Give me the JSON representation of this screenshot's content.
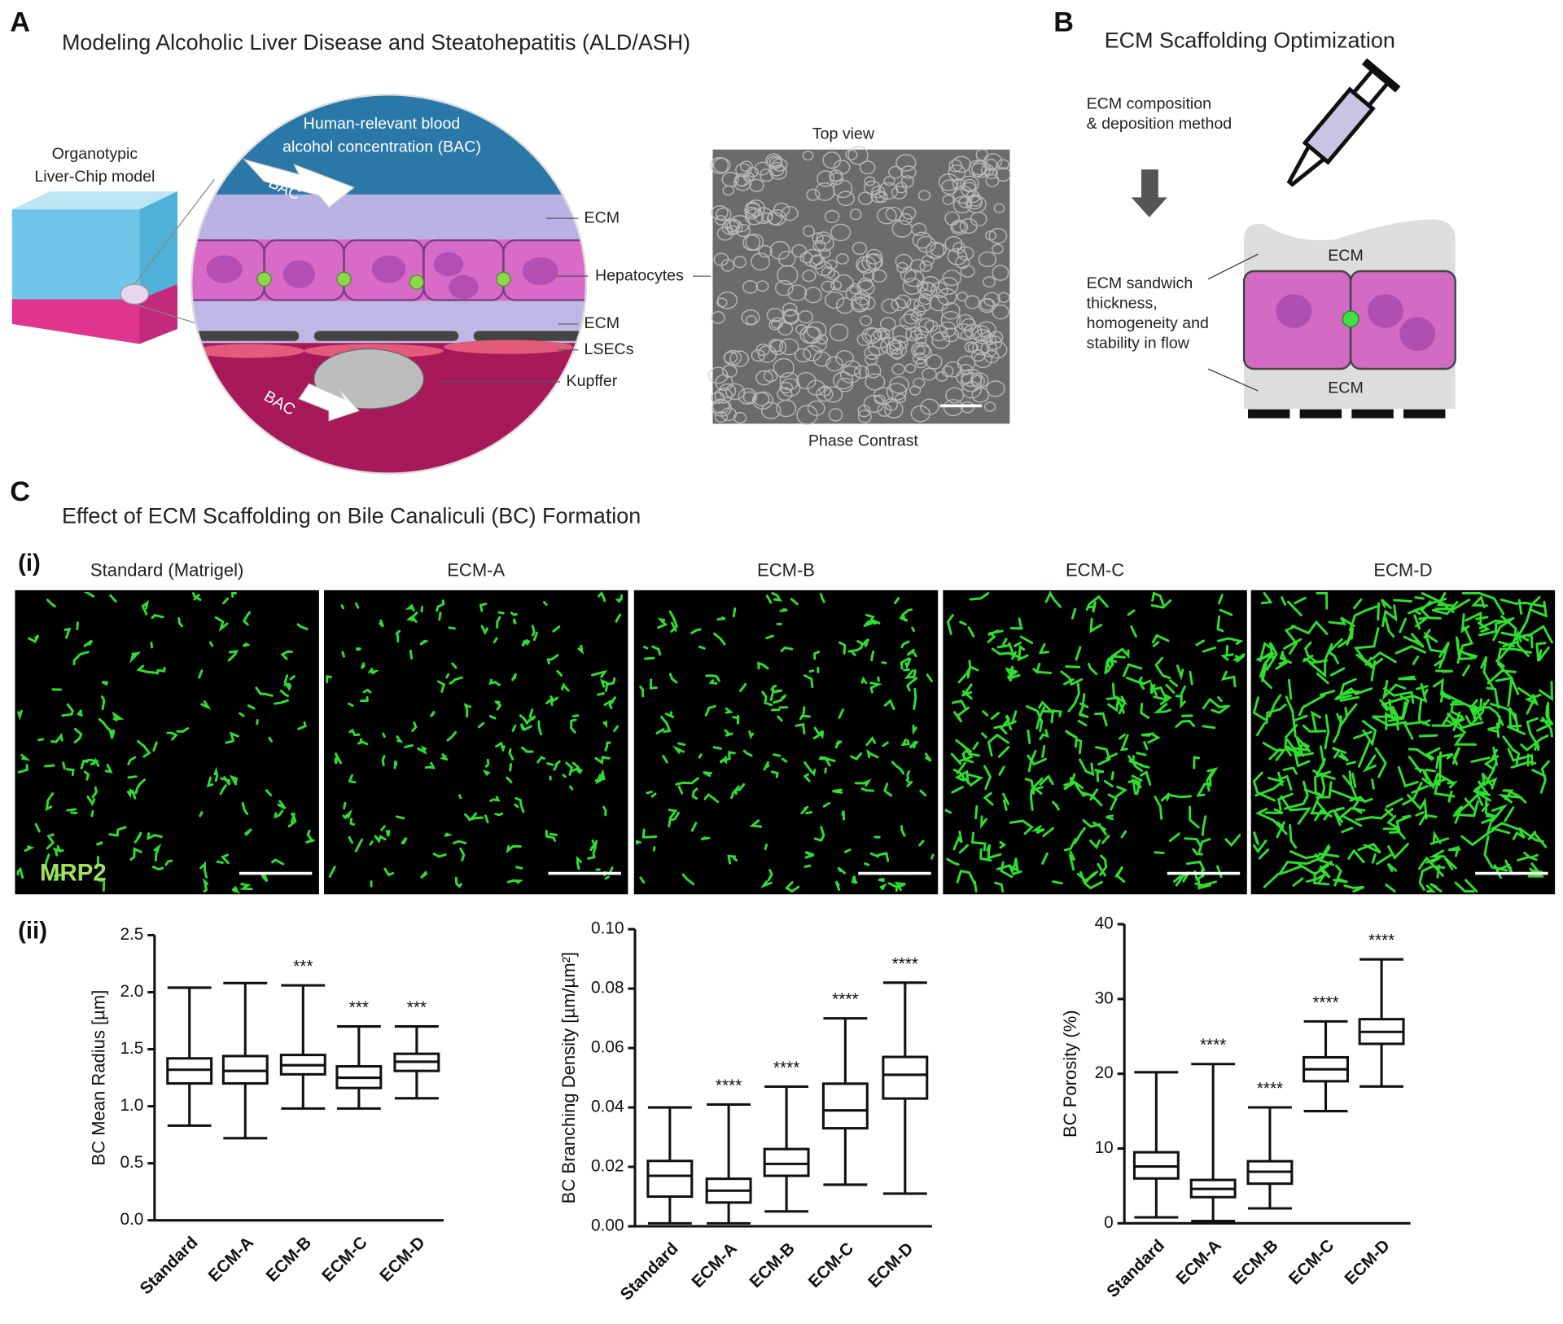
{
  "panel_a": {
    "letter": "A",
    "title": "Modeling Alcoholic Liver Disease and Steatohepatitis (ALD/ASH)",
    "model_label": [
      "Organotypic",
      "Liver-Chip model"
    ],
    "bac_title": [
      "Human-relevant blood",
      "alcohol concentration (BAC)"
    ],
    "bac_top": "BAC",
    "bac_bottom": "BAC",
    "layers": [
      "ECM",
      "Hepatocytes",
      "ECM",
      "LSECs",
      "Kupffer"
    ],
    "top_view": "Top view",
    "phase_contrast": "Phase Contrast"
  },
  "panel_b": {
    "letter": "B",
    "title": "ECM Scaffolding Optimization",
    "step1": [
      "ECM composition",
      "& deposition method"
    ],
    "step2": [
      "ECM sandwich",
      "thickness,",
      "homogeneity and",
      "stability in flow"
    ],
    "ecm_top": "ECM",
    "ecm_bottom": "ECM"
  },
  "panel_c": {
    "letter": "C",
    "title": "Effect of ECM Scaffolding on Bile Canaliculi (BC) Formation",
    "sub_i": "(i)",
    "sub_ii": "(ii)",
    "image_titles": [
      "Standard (Matrigel)",
      "ECM-A",
      "ECM-B",
      "ECM-C",
      "ECM-D"
    ],
    "stain": "MRP2"
  },
  "chart_data": [
    {
      "type": "box",
      "ylabel": "BC Mean Radius [µm]",
      "categories": [
        "Standard",
        "ECM-A",
        "ECM-B",
        "ECM-C",
        "ECM-D"
      ],
      "min": [
        0.83,
        0.72,
        0.98,
        0.98,
        1.07
      ],
      "q1": [
        1.2,
        1.2,
        1.28,
        1.16,
        1.31
      ],
      "median": [
        1.32,
        1.31,
        1.36,
        1.25,
        1.39
      ],
      "q3": [
        1.42,
        1.44,
        1.45,
        1.35,
        1.46
      ],
      "max": [
        2.04,
        2.08,
        2.06,
        1.7,
        1.7
      ],
      "significance": [
        null,
        null,
        "***",
        "***",
        "***"
      ],
      "ylim": [
        0,
        2.5
      ],
      "yticks": [
        {
          "value": 0,
          "label": "0.0"
        },
        0.5,
        {
          "value": 1,
          "label": "1.0"
        },
        1.5,
        {
          "value": 2,
          "label": "2.0"
        },
        2.5
      ]
    },
    {
      "type": "box",
      "ylabel": "BC Branching Density [µm/µm²]",
      "categories": [
        "Standard",
        "ECM-A",
        "ECM-B",
        "ECM-C",
        "ECM-D"
      ],
      "min": [
        0.001,
        0.001,
        0.005,
        0.014,
        0.011
      ],
      "q1": [
        0.01,
        0.008,
        0.017,
        0.033,
        0.043
      ],
      "median": [
        0.017,
        0.012,
        0.021,
        0.039,
        0.051
      ],
      "q3": [
        0.022,
        0.016,
        0.026,
        0.048,
        0.057
      ],
      "max": [
        0.04,
        0.041,
        0.047,
        0.07,
        0.082
      ],
      "significance": [
        null,
        "****",
        "****",
        "****",
        "****"
      ],
      "ylim": [
        0,
        0.1
      ],
      "yticks": [
        {
          "value": 0,
          "label": "0.00"
        },
        0.02,
        0.04,
        0.06,
        0.08,
        {
          "value": 0.1,
          "label": "0.10"
        }
      ]
    },
    {
      "type": "box",
      "ylabel": "BC Porosity (%)",
      "categories": [
        "Standard",
        "ECM-A",
        "ECM-B",
        "ECM-C",
        "ECM-D"
      ],
      "min": [
        0.8,
        0.3,
        2,
        15,
        18.3
      ],
      "q1": [
        6,
        3.5,
        5.3,
        19,
        24
      ],
      "median": [
        7.6,
        4.6,
        6.9,
        20.6,
        25.6
      ],
      "q3": [
        9.5,
        5.8,
        8.3,
        22.2,
        27.3
      ],
      "max": [
        20.2,
        21.3,
        15.5,
        27,
        35.3
      ],
      "significance": [
        null,
        "****",
        "****",
        "****",
        "****"
      ],
      "ylim": [
        0,
        40
      ],
      "yticks": [
        0,
        10,
        20,
        30,
        40
      ]
    }
  ]
}
